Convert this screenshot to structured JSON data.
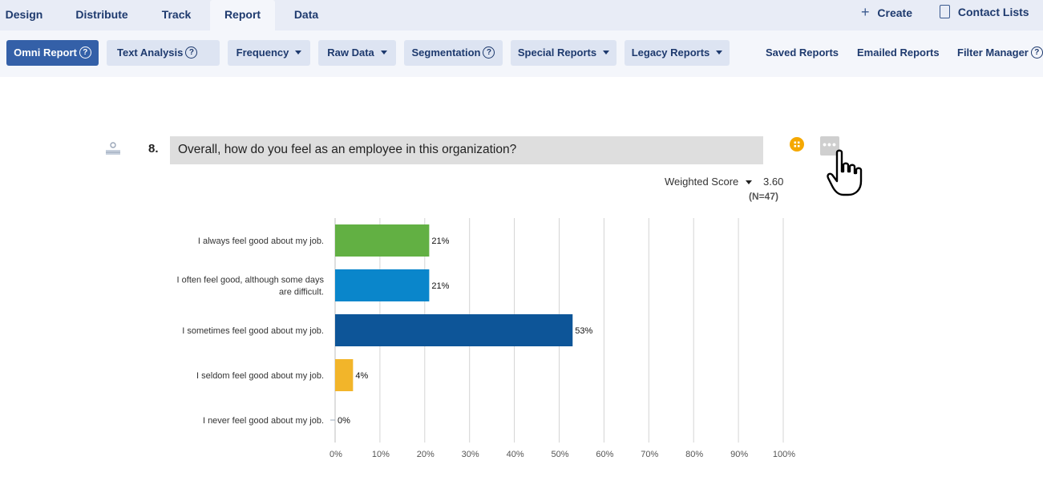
{
  "nav": {
    "tabs": [
      {
        "label": "Design"
      },
      {
        "label": "Distribute"
      },
      {
        "label": "Track"
      },
      {
        "label": "Report",
        "active": true
      },
      {
        "label": "Data"
      }
    ],
    "create_label": "Create",
    "contact_lists_label": "Contact Lists"
  },
  "toolbar": {
    "omni_report": "Omni Report",
    "text_analysis": "Text Analysis",
    "frequency": "Frequency",
    "raw_data": "Raw Data",
    "segmentation": "Segmentation",
    "special_reports": "Special Reports",
    "legacy_reports": "Legacy Reports",
    "saved_reports": "Saved Reports",
    "emailed_reports": "Emailed Reports",
    "filter_manager": "Filter Manager"
  },
  "question": {
    "number": "8.",
    "text": "Overall, how do you feel as an employee in this organization?",
    "score_label": "Weighted Score",
    "score_value": "3.60",
    "n_label": "(N=47)"
  },
  "colors": {
    "accent": "#3460a8",
    "bar_green": "#62b043",
    "bar_lightblue": "#0a86cb",
    "bar_darkblue": "#0d5598",
    "bar_yellow": "#f2b52a"
  },
  "chart_data": {
    "type": "bar",
    "orientation": "horizontal",
    "categories": [
      "I always feel good about my job.",
      "I often feel good, although some days are difficult.",
      "I sometimes feel good about my job.",
      "I seldom feel good about my job.",
      "I never feel good about my job."
    ],
    "values": [
      21,
      21,
      53,
      4,
      0
    ],
    "value_labels": [
      "21%",
      "21%",
      "53%",
      "4%",
      "0%"
    ],
    "colors": [
      "#62b043",
      "#0a86cb",
      "#0d5598",
      "#f2b52a",
      "#cccccc"
    ],
    "x_ticks": [
      "0%",
      "10%",
      "20%",
      "30%",
      "40%",
      "50%",
      "60%",
      "70%",
      "80%",
      "90%",
      "100%"
    ],
    "xlim": [
      0,
      100
    ],
    "grid": true
  }
}
